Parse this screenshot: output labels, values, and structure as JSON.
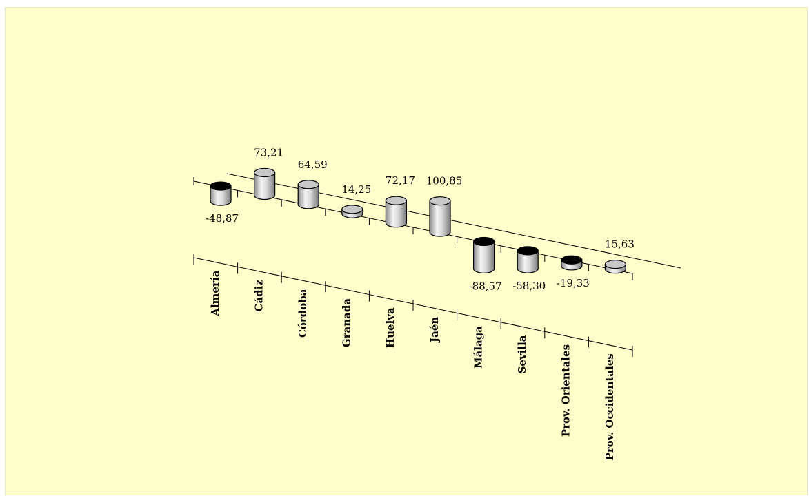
{
  "chart_data": {
    "type": "bar",
    "subtype": "3d-cylinder",
    "title": "",
    "xlabel": "",
    "ylabel": "",
    "categories": [
      "Almería",
      "Cádiz",
      "Córdoba",
      "Granada",
      "Huelva",
      "Jaén",
      "Málaga",
      "Sevilla",
      "Prov. Orientales",
      "Prov. Occidentales"
    ],
    "values": [
      -48.87,
      73.21,
      64.59,
      14.25,
      72.17,
      100.85,
      -88.57,
      -58.3,
      -19.33,
      15.63
    ],
    "value_labels": [
      "-48,87",
      "73,21",
      "64,59",
      "14,25",
      "72,17",
      "100,85",
      "-88,57",
      "-58,30",
      "-19,33",
      "15,63"
    ],
    "grid": false,
    "legend": "none",
    "colors": {
      "background": "#ffffcc",
      "cylinder_side_light": "#f2f2f2",
      "cylinder_side_dark": "#8c8c8c",
      "positive_top": "#c8c8c8",
      "negative_top": "#000000",
      "axis": "#000000"
    }
  }
}
